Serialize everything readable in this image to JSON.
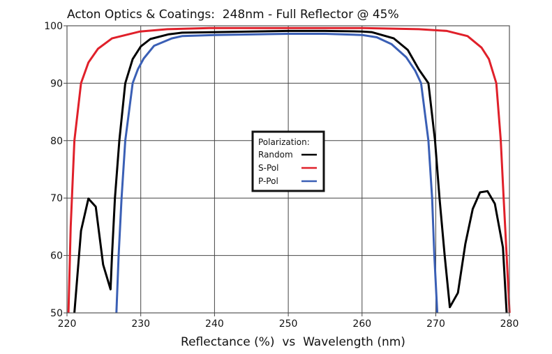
{
  "chart_data": {
    "type": "line",
    "title": "Acton Optics & Coatings:  248nm - Full Reflector @ 45%",
    "xlabel": "Reflectance (%)  vs  Wavelength (nm)",
    "ylabel": "",
    "xlim": [
      220,
      281
    ],
    "ylim": [
      50,
      100
    ],
    "xticks": [
      220,
      230,
      240,
      250,
      260,
      270,
      280
    ],
    "xtick_labels": [
      "220",
      "230",
      "240",
      "250",
      "260",
      "270",
      "280"
    ],
    "yticks": [
      50,
      60,
      70,
      80,
      90,
      100
    ],
    "ytick_labels": [
      "50",
      "60",
      "70",
      "80",
      "90",
      "100"
    ],
    "grid": true,
    "legend": {
      "title": "Polarization:",
      "placement": "center",
      "entries": [
        "Random",
        "S-Pol",
        "P-Pol"
      ]
    },
    "series": [
      {
        "name": "Random",
        "color": "#000000",
        "x": [
          221.0,
          221.9,
          222.9,
          223.9,
          224.9,
          225.9,
          226.1,
          226.5,
          227.1,
          227.9,
          228.9,
          230.0,
          231.3,
          233.7,
          235.6,
          240,
          245,
          250,
          255,
          260,
          261.3,
          264.3,
          266.2,
          267.7,
          269.0,
          269.9,
          270.5,
          271.2,
          271.9,
          273.0,
          274.0,
          275.0,
          276.0,
          277.0,
          278.0,
          279.1,
          279.6
        ],
        "y": [
          50,
          64.3,
          69.9,
          68.5,
          58.4,
          54.1,
          60,
          70,
          80,
          90,
          94.2,
          96.4,
          97.7,
          98.5,
          98.8,
          98.9,
          99.0,
          99.1,
          99.1,
          99.0,
          98.9,
          97.8,
          95.8,
          92.4,
          90,
          80,
          70,
          60,
          51.0,
          53.5,
          62.0,
          68.1,
          71.0,
          71.2,
          69.0,
          61.4,
          50
        ]
      },
      {
        "name": "S-Pol",
        "color": "#e0202a",
        "x": [
          220.2,
          220.5,
          221.0,
          221.9,
          222.9,
          224.2,
          226.1,
          229.9,
          233.6,
          239.3,
          250,
          260.1,
          267.7,
          271.5,
          274.3,
          276.2,
          277.2,
          278.2,
          278.8,
          279.2,
          279.6,
          280.0
        ],
        "y": [
          50,
          65,
          80,
          90,
          93.6,
          96.0,
          97.8,
          99.0,
          99.4,
          99.6,
          99.6,
          99.6,
          99.4,
          99.1,
          98.2,
          96.2,
          94.2,
          90,
          80.2,
          70,
          60,
          50
        ]
      },
      {
        "name": "P-Pol",
        "color": "#3a5fb5",
        "x": [
          226.7,
          227.0,
          227.4,
          227.9,
          228.9,
          229.6,
          230.4,
          231.8,
          234.2,
          235.6,
          240,
          245,
          250,
          255,
          260,
          262,
          264,
          266,
          267.2,
          268.0,
          269.0,
          269.5,
          269.8,
          270.2
        ],
        "y": [
          50,
          60,
          70,
          80,
          90,
          92.4,
          94.3,
          96.5,
          97.8,
          98.2,
          98.4,
          98.5,
          98.6,
          98.6,
          98.4,
          98.0,
          96.8,
          94.5,
          92.2,
          90,
          80,
          70,
          60,
          50
        ]
      }
    ]
  }
}
